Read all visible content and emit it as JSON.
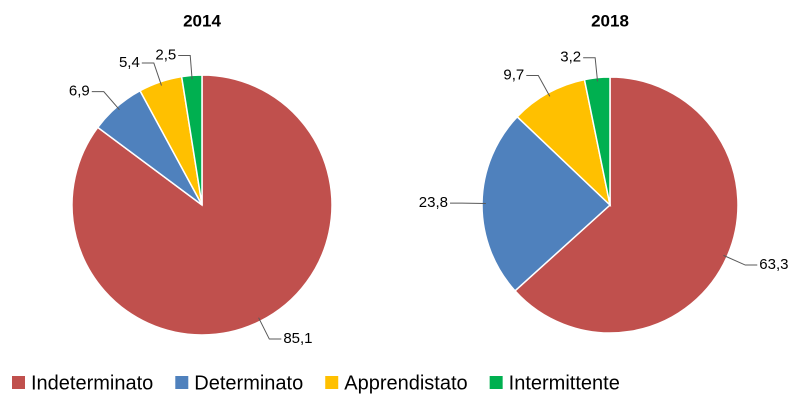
{
  "chart_data": {
    "type": "pie",
    "categories": [
      "Indeterminato",
      "Determinato",
      "Apprendistato",
      "Intermittente"
    ],
    "colors": [
      "#c0504d",
      "#4f81bd",
      "#ffc000",
      "#00b050"
    ],
    "series": [
      {
        "name": "2014",
        "values": [
          85.1,
          6.9,
          5.4,
          2.5
        ],
        "value_labels": [
          "85,1",
          "6,9",
          "5,4",
          "2,5"
        ]
      },
      {
        "name": "2018",
        "values": [
          63.3,
          23.8,
          9.7,
          3.2
        ],
        "value_labels": [
          "63,3",
          "23,8",
          "9,7",
          "3,2"
        ]
      }
    ]
  }
}
